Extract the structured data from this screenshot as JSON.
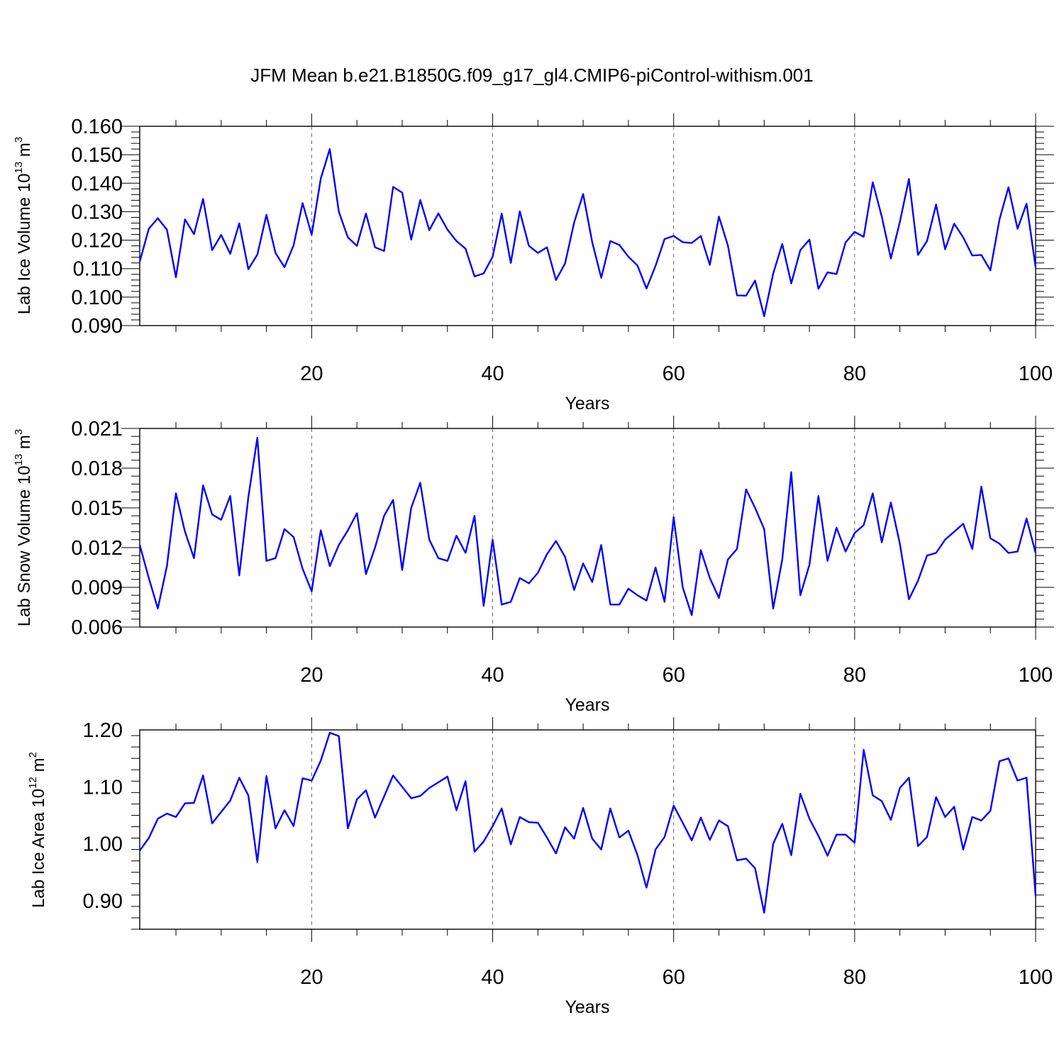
{
  "figure": {
    "title": "JFM Mean b.e21.B1850G.f09_g17_gl4.CMIP6-piControl-withism.001"
  },
  "colors": {
    "series": "#0000ff",
    "axis": "#000000",
    "grid": "#555555"
  },
  "chart_data": [
    {
      "type": "line",
      "ylabel": {
        "base": "Lab Ice Volume 10",
        "exp": "13",
        "unit": " m",
        "unit_exp": "3"
      },
      "xlabel": "Years",
      "xlim": [
        1,
        100
      ],
      "ylim": [
        0.09,
        0.16
      ],
      "xticks": [
        20,
        40,
        60,
        80,
        100
      ],
      "xtick_labels": [
        "20",
        "40",
        "60",
        "80",
        "100"
      ],
      "yticks": [
        0.09,
        0.1,
        0.11,
        0.12,
        0.13,
        0.14,
        0.15,
        0.16
      ],
      "ytick_labels": [
        "0.090",
        "0.100",
        "0.110",
        "0.120",
        "0.130",
        "0.140",
        "0.150",
        "0.160"
      ],
      "grid": "vertical dashed at major x ticks",
      "series": [
        {
          "x": [
            1,
            2,
            3,
            4,
            5,
            6,
            7,
            8,
            9,
            10,
            11,
            12,
            13,
            14,
            15,
            16,
            17,
            18,
            19,
            20,
            21,
            22,
            23,
            24,
            25,
            26,
            27,
            28,
            29,
            30,
            31,
            32,
            33,
            34,
            35,
            36,
            37,
            38,
            39,
            40,
            41,
            42,
            43,
            44,
            45,
            46,
            47,
            48,
            49,
            50,
            51,
            52,
            53,
            54,
            55,
            56,
            57,
            58,
            59,
            60,
            61,
            62,
            63,
            64,
            65,
            66,
            67,
            68,
            69,
            70,
            71,
            72,
            73,
            74,
            75,
            76,
            77,
            78,
            79,
            80,
            81,
            82,
            83,
            84,
            85,
            86,
            87,
            88,
            89,
            90,
            91,
            92,
            93,
            94,
            95,
            96,
            97,
            98,
            99,
            100
          ],
          "values": [
            0.1125,
            0.124,
            0.1277,
            0.1237,
            0.107,
            0.1273,
            0.1221,
            0.1345,
            0.1165,
            0.1218,
            0.1152,
            0.1259,
            0.1098,
            0.1149,
            0.1289,
            0.1155,
            0.1105,
            0.1182,
            0.133,
            0.1219,
            0.1416,
            0.152,
            0.13,
            0.121,
            0.118,
            0.1293,
            0.1175,
            0.1162,
            0.1387,
            0.1367,
            0.1202,
            0.1341,
            0.1235,
            0.1294,
            0.1237,
            0.1197,
            0.117,
            0.1073,
            0.1083,
            0.1142,
            0.1293,
            0.112,
            0.1301,
            0.118,
            0.1155,
            0.1175,
            0.106,
            0.1118,
            0.1262,
            0.1362,
            0.1193,
            0.1068,
            0.1197,
            0.1183,
            0.1142,
            0.1111,
            0.103,
            0.111,
            0.1204,
            0.1215,
            0.1193,
            0.119,
            0.1215,
            0.1113,
            0.1283,
            0.1181,
            0.1006,
            0.1005,
            0.1058,
            0.0933,
            0.1082,
            0.1187,
            0.1048,
            0.1165,
            0.1202,
            0.1029,
            0.1087,
            0.1081,
            0.1192,
            0.1229,
            0.1212,
            0.1403,
            0.1283,
            0.1136,
            0.1264,
            0.1415,
            0.1148,
            0.1197,
            0.1325,
            0.1168,
            0.1258,
            0.121,
            0.1146,
            0.1148,
            0.1094,
            0.1272,
            0.1386,
            0.124,
            0.1328,
            0.1105
          ]
        }
      ]
    },
    {
      "type": "line",
      "ylabel": {
        "base": "Lab Snow Volume 10",
        "exp": "13",
        "unit": " m",
        "unit_exp": "3"
      },
      "xlabel": "Years",
      "xlim": [
        1,
        100
      ],
      "ylim": [
        0.006,
        0.021
      ],
      "xticks": [
        20,
        40,
        60,
        80,
        100
      ],
      "xtick_labels": [
        "20",
        "40",
        "60",
        "80",
        "100"
      ],
      "yticks": [
        0.006,
        0.009,
        0.012,
        0.015,
        0.018,
        0.021
      ],
      "ytick_labels": [
        "0.006",
        "0.009",
        "0.012",
        "0.015",
        "0.018",
        "0.021"
      ],
      "grid": "vertical dashed at major x ticks",
      "series": [
        {
          "x": [
            1,
            2,
            3,
            4,
            5,
            6,
            7,
            8,
            9,
            10,
            11,
            12,
            13,
            14,
            15,
            16,
            17,
            18,
            19,
            20,
            21,
            22,
            23,
            24,
            25,
            26,
            27,
            28,
            29,
            30,
            31,
            32,
            33,
            34,
            35,
            36,
            37,
            38,
            39,
            40,
            41,
            42,
            43,
            44,
            45,
            46,
            47,
            48,
            49,
            50,
            51,
            52,
            53,
            54,
            55,
            56,
            57,
            58,
            59,
            60,
            61,
            62,
            63,
            64,
            65,
            66,
            67,
            68,
            69,
            70,
            71,
            72,
            73,
            74,
            75,
            76,
            77,
            78,
            79,
            80,
            81,
            82,
            83,
            84,
            85,
            86,
            87,
            88,
            89,
            90,
            91,
            92,
            93,
            94,
            95,
            96,
            97,
            98,
            99,
            100
          ],
          "values": [
            0.0122,
            0.0097,
            0.0074,
            0.0106,
            0.0161,
            0.0132,
            0.0112,
            0.0167,
            0.0145,
            0.0141,
            0.0159,
            0.0099,
            0.0158,
            0.0203,
            0.011,
            0.0112,
            0.0134,
            0.0128,
            0.0104,
            0.0087,
            0.0133,
            0.0106,
            0.0122,
            0.0133,
            0.0146,
            0.01,
            0.012,
            0.0144,
            0.0156,
            0.0103,
            0.015,
            0.0169,
            0.0126,
            0.0112,
            0.011,
            0.0129,
            0.0116,
            0.0144,
            0.0076,
            0.0126,
            0.0077,
            0.0079,
            0.0097,
            0.0093,
            0.0101,
            0.0115,
            0.0125,
            0.0113,
            0.0088,
            0.0108,
            0.0094,
            0.0122,
            0.0077,
            0.0077,
            0.0089,
            0.0084,
            0.008,
            0.0105,
            0.0079,
            0.0143,
            0.009,
            0.0069,
            0.0118,
            0.0097,
            0.0082,
            0.0111,
            0.0119,
            0.0164,
            0.015,
            0.0134,
            0.0074,
            0.0111,
            0.0177,
            0.0084,
            0.0107,
            0.0159,
            0.011,
            0.0135,
            0.0117,
            0.0131,
            0.0137,
            0.0161,
            0.0124,
            0.0154,
            0.0123,
            0.0081,
            0.0095,
            0.0114,
            0.0116,
            0.0126,
            0.0132,
            0.0138,
            0.0119,
            0.0166,
            0.0127,
            0.0123,
            0.0116,
            0.0117,
            0.0142,
            0.0116
          ]
        }
      ]
    },
    {
      "type": "line",
      "ylabel": {
        "base": "Lab Ice Area 10",
        "exp": "12",
        "unit": " m",
        "unit_exp": "2"
      },
      "xlabel": "Years",
      "xlim": [
        1,
        100
      ],
      "ylim": [
        0.85,
        1.2
      ],
      "xticks": [
        20,
        40,
        60,
        80,
        100
      ],
      "xtick_labels": [
        "20",
        "40",
        "60",
        "80",
        "100"
      ],
      "yticks": [
        0.9,
        1.0,
        1.1,
        1.2
      ],
      "ytick_labels": [
        "0.90",
        "1.00",
        "1.10",
        "1.20"
      ],
      "grid": "vertical dashed at major x ticks",
      "series": [
        {
          "x": [
            1,
            2,
            3,
            4,
            5,
            6,
            7,
            8,
            9,
            10,
            11,
            12,
            13,
            14,
            15,
            16,
            17,
            18,
            19,
            20,
            21,
            22,
            23,
            24,
            25,
            26,
            27,
            28,
            29,
            30,
            31,
            32,
            33,
            34,
            35,
            36,
            37,
            38,
            39,
            40,
            41,
            42,
            43,
            44,
            45,
            46,
            47,
            48,
            49,
            50,
            51,
            52,
            53,
            54,
            55,
            56,
            57,
            58,
            59,
            60,
            61,
            62,
            63,
            64,
            65,
            66,
            67,
            68,
            69,
            70,
            71,
            72,
            73,
            74,
            75,
            76,
            77,
            78,
            79,
            80,
            81,
            82,
            83,
            84,
            85,
            86,
            87,
            88,
            89,
            90,
            91,
            92,
            93,
            94,
            95,
            96,
            97,
            98,
            99,
            100
          ],
          "values": [
            0.988,
            1.01,
            1.044,
            1.053,
            1.047,
            1.071,
            1.072,
            1.12,
            1.036,
            1.056,
            1.076,
            1.116,
            1.085,
            0.968,
            1.119,
            1.027,
            1.059,
            1.031,
            1.115,
            1.111,
            1.146,
            1.195,
            1.189,
            1.027,
            1.078,
            1.094,
            1.046,
            1.083,
            1.12,
            1.1,
            1.08,
            1.084,
            1.098,
            1.108,
            1.118,
            1.059,
            1.11,
            0.986,
            1.004,
            1.031,
            1.062,
            0.999,
            1.047,
            1.038,
            1.037,
            1.011,
            0.983,
            1.029,
            1.009,
            1.063,
            1.009,
            0.99,
            1.062,
            1.011,
            1.023,
            0.98,
            0.923,
            0.99,
            1.012,
            1.067,
            1.037,
            1.006,
            1.046,
            1.007,
            1.041,
            1.031,
            0.971,
            0.974,
            0.957,
            0.879,
            1.0,
            1.035,
            0.98,
            1.088,
            1.044,
            1.014,
            0.979,
            1.016,
            1.016,
            1.002,
            1.165,
            1.085,
            1.075,
            1.042,
            1.098,
            1.116,
            0.996,
            1.012,
            1.082,
            1.047,
            1.065,
            0.99,
            1.047,
            1.041,
            1.058,
            1.145,
            1.15,
            1.111,
            1.116,
            0.908
          ]
        }
      ]
    }
  ]
}
